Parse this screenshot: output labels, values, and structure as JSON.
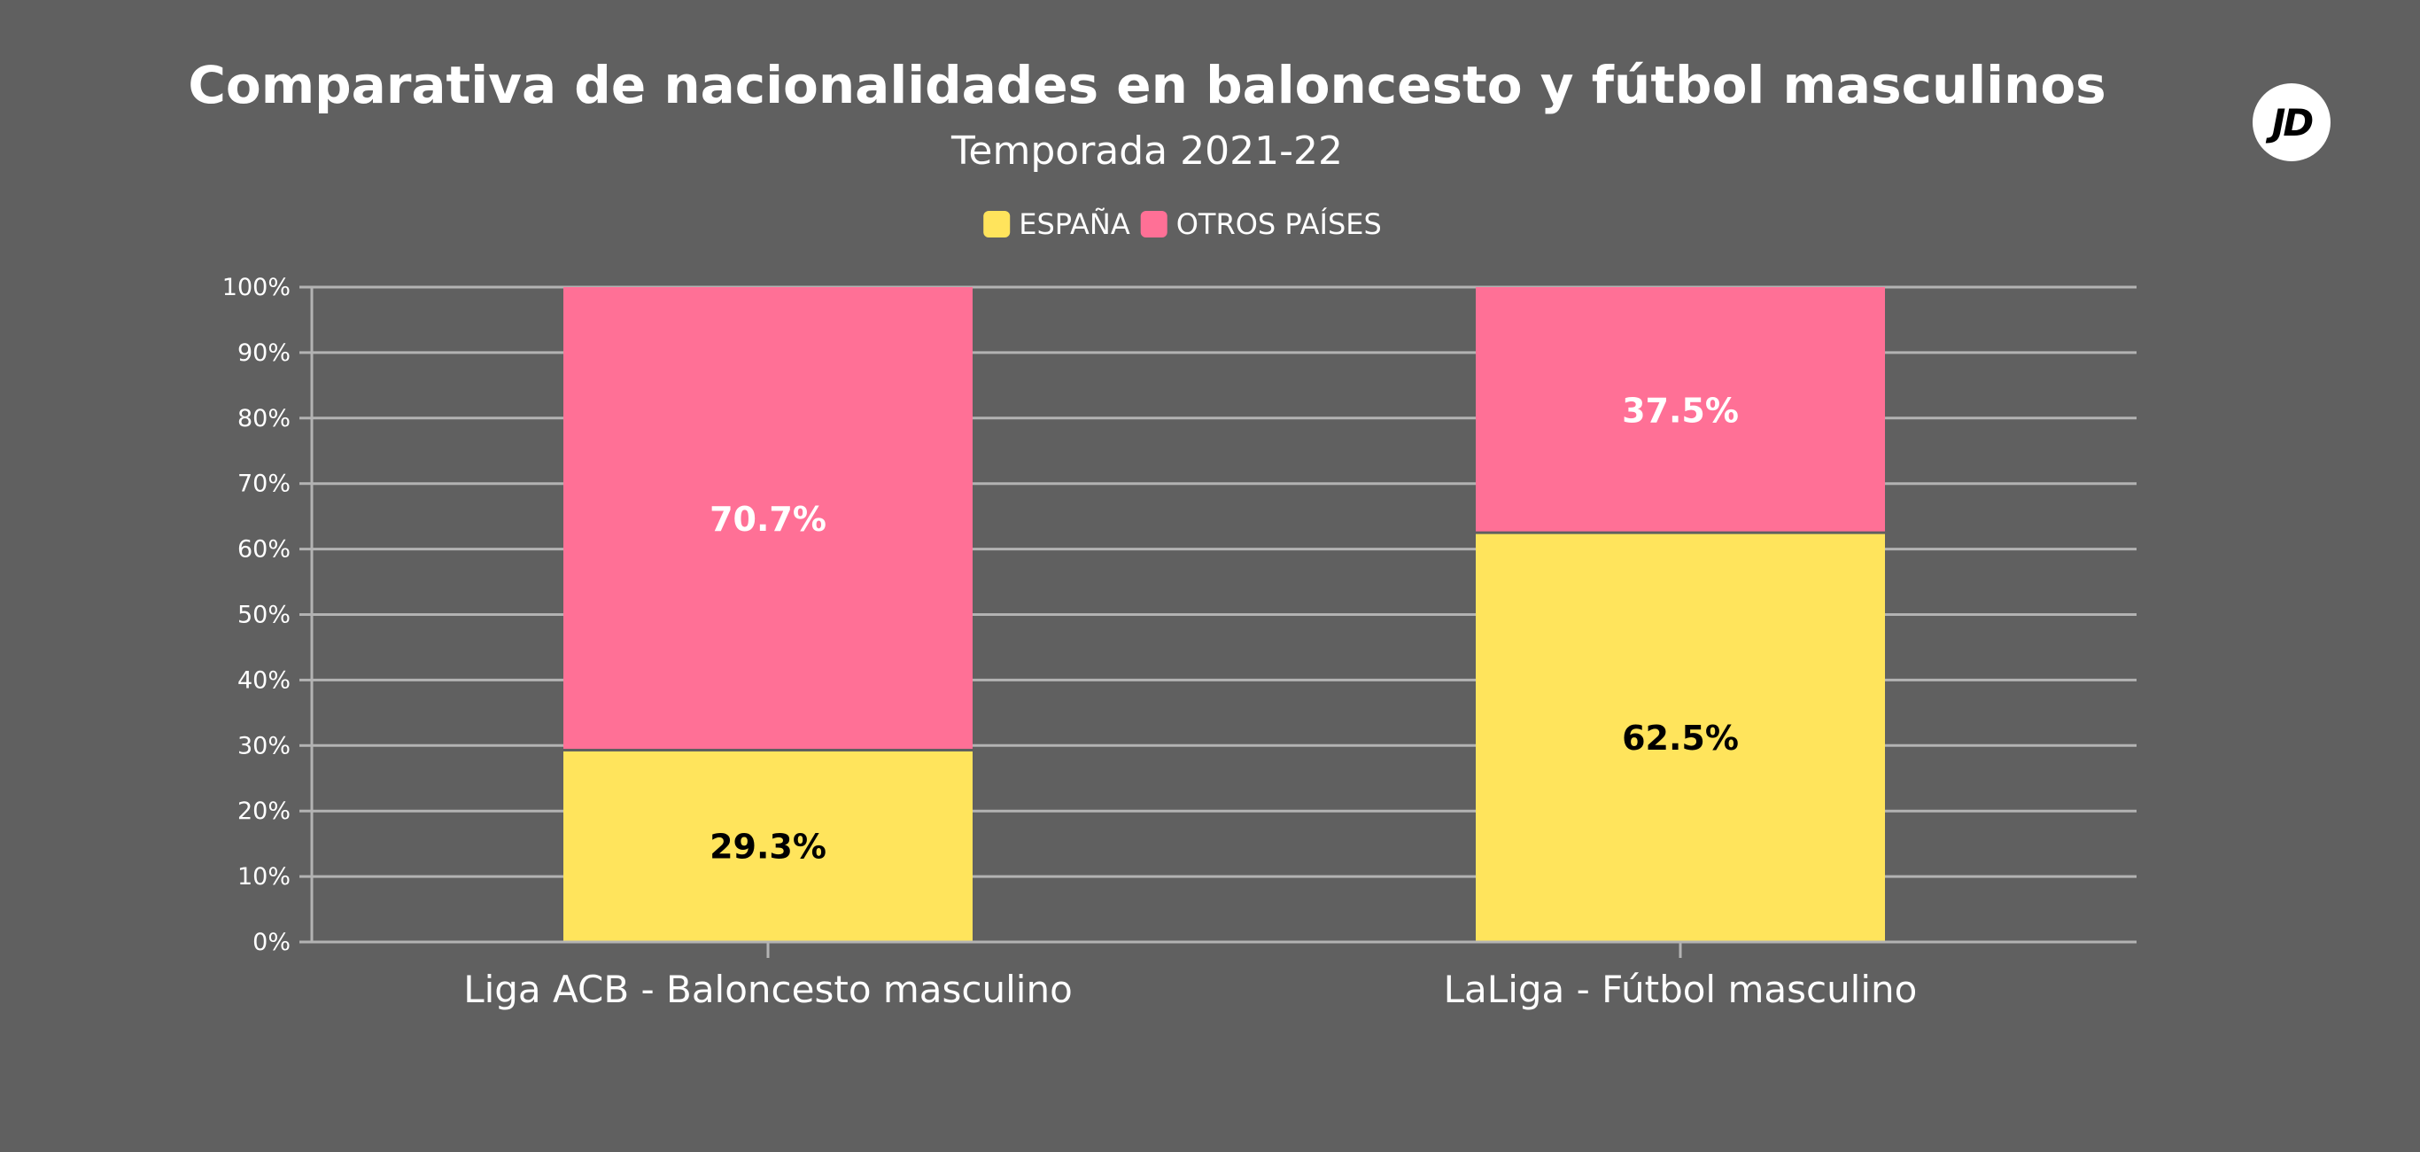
{
  "brand": {
    "logo_text": "JD"
  },
  "chart_data": {
    "type": "bar",
    "stacked": true,
    "title": "Comparativa de nacionalidades en baloncesto y fútbol masculinos",
    "subtitle": "Temporada 2021-22",
    "categories": [
      "Liga ACB - Baloncesto masculino",
      "LaLiga - Fútbol masculino"
    ],
    "series": [
      {
        "name": "ESPAÑA",
        "values": [
          29.3,
          62.5
        ],
        "color": "#FFE45C",
        "label_color": "#000000"
      },
      {
        "name": "OTROS PAÍSES",
        "values": [
          70.7,
          37.5
        ],
        "color": "#FF7096",
        "label_color": "#ffffff"
      }
    ],
    "value_suffix": "%",
    "ylim": [
      0,
      100
    ],
    "yticks": [
      "0%",
      "10%",
      "20%",
      "30%",
      "40%",
      "50%",
      "60%",
      "70%",
      "80%",
      "90%",
      "100%"
    ],
    "grid": true,
    "legend_position": "top-center",
    "background": "#606060",
    "grid_color": "#B3B3B3"
  }
}
